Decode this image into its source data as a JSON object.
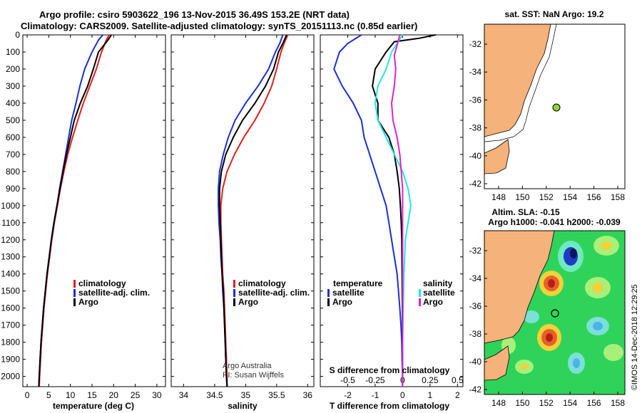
{
  "header": {
    "line1": "Argo profile: csiro 5903622_196 13-Nov-2015 36.49S 153.2E (NRT data)",
    "line2": "Climatology: CARS2009. Satellite-adjusted climatology: synTS_20151113.nc (0.85d earlier)"
  },
  "colors": {
    "climatology": "#e0201c",
    "satellite": "#1a2fd6",
    "argo": "#000000",
    "sat_salinity": "#22e6e6",
    "sal_clim": "#e020d0",
    "land": "#f5b27a"
  },
  "chart_data": [
    {
      "type": "line",
      "id": "temperature",
      "xlabel": "temperature (deg C)",
      "xlim": [
        -1,
        32
      ],
      "ylim": [
        2060,
        0
      ],
      "xticks": [
        0,
        5,
        10,
        15,
        20,
        25,
        30
      ],
      "yticks": [
        0,
        100,
        200,
        300,
        400,
        500,
        600,
        700,
        800,
        900,
        1000,
        1100,
        1200,
        1300,
        1400,
        1500,
        1600,
        1700,
        1800,
        1900,
        2000
      ],
      "legend": [
        "climatology",
        "satellite-adj. clim.",
        "Argo"
      ],
      "series": [
        {
          "name": "climatology",
          "color": "#e0201c",
          "points": [
            [
              19,
              0
            ],
            [
              18.3,
              30
            ],
            [
              17.2,
              100
            ],
            [
              16,
              200
            ],
            [
              14.5,
              300
            ],
            [
              13,
              400
            ],
            [
              11.7,
              500
            ],
            [
              10.5,
              600
            ],
            [
              9.4,
              700
            ],
            [
              8.5,
              800
            ],
            [
              7.7,
              900
            ],
            [
              7,
              1000
            ],
            [
              6.3,
              1100
            ],
            [
              5.7,
              1200
            ],
            [
              5.2,
              1300
            ],
            [
              4.7,
              1400
            ],
            [
              4.3,
              1500
            ],
            [
              3.9,
              1600
            ],
            [
              3.6,
              1700
            ],
            [
              3.3,
              1800
            ],
            [
              3.1,
              1900
            ],
            [
              2.9,
              2000
            ],
            [
              2.8,
              2060
            ]
          ]
        },
        {
          "name": "satellite-adj. clim.",
          "color": "#1a2fd6",
          "points": [
            [
              17.5,
              0
            ],
            [
              16.5,
              30
            ],
            [
              15,
              100
            ],
            [
              13.3,
              200
            ],
            [
              12.2,
              300
            ],
            [
              11.3,
              400
            ],
            [
              10.3,
              500
            ],
            [
              9.6,
              600
            ],
            [
              8.9,
              700
            ],
            [
              8.2,
              800
            ],
            [
              7.5,
              900
            ],
            [
              6.9,
              1000
            ],
            [
              6.2,
              1100
            ],
            [
              5.6,
              1200
            ],
            [
              5.1,
              1300
            ],
            [
              4.6,
              1400
            ],
            [
              4.2,
              1500
            ],
            [
              3.8,
              1600
            ],
            [
              3.5,
              1700
            ],
            [
              3.2,
              1800
            ],
            [
              3,
              1900
            ],
            [
              2.8,
              2000
            ],
            [
              2.7,
              2060
            ]
          ]
        },
        {
          "name": "Argo",
          "color": "#000000",
          "points": [
            [
              19.5,
              0
            ],
            [
              18.7,
              30
            ],
            [
              16.5,
              100
            ],
            [
              15.3,
              200
            ],
            [
              14,
              300
            ],
            [
              12.3,
              400
            ],
            [
              10.9,
              500
            ],
            [
              10,
              600
            ],
            [
              9.1,
              700
            ],
            [
              8.3,
              800
            ],
            [
              7.6,
              900
            ],
            [
              6.9,
              1000
            ],
            [
              6.2,
              1100
            ],
            [
              5.6,
              1200
            ],
            [
              5.1,
              1300
            ],
            [
              4.6,
              1400
            ],
            [
              4.2,
              1500
            ],
            [
              3.8,
              1600
            ],
            [
              3.5,
              1700
            ],
            [
              3.2,
              1800
            ],
            [
              3,
              1900
            ],
            [
              2.8,
              2000
            ],
            [
              2.7,
              2060
            ]
          ]
        }
      ]
    },
    {
      "type": "line",
      "id": "salinity",
      "xlabel": "salinity",
      "xlim": [
        33.8,
        36.1
      ],
      "ylim": [
        2060,
        0
      ],
      "xticks": [
        34,
        34.5,
        35,
        35.5,
        36
      ],
      "legend": [
        "climatology",
        "satellite-adj. clim.",
        "Argo"
      ],
      "annotation": [
        "Argo Australia",
        "PI: Susan Wijffels"
      ],
      "series": [
        {
          "name": "climatology",
          "color": "#e0201c",
          "points": [
            [
              35.68,
              0
            ],
            [
              35.62,
              50
            ],
            [
              35.57,
              100
            ],
            [
              35.5,
              200
            ],
            [
              35.42,
              300
            ],
            [
              35.3,
              400
            ],
            [
              35.15,
              500
            ],
            [
              34.97,
              600
            ],
            [
              34.82,
              700
            ],
            [
              34.7,
              800
            ],
            [
              34.63,
              900
            ],
            [
              34.6,
              1000
            ],
            [
              34.6,
              1100
            ],
            [
              34.61,
              1200
            ],
            [
              34.62,
              1300
            ],
            [
              34.63,
              1400
            ],
            [
              34.65,
              1500
            ],
            [
              34.66,
              1600
            ],
            [
              34.67,
              1700
            ],
            [
              34.68,
              1800
            ],
            [
              34.69,
              1900
            ],
            [
              34.7,
              2000
            ],
            [
              34.7,
              2060
            ]
          ]
        },
        {
          "name": "satellite-adj. clim.",
          "color": "#1a2fd6",
          "points": [
            [
              35.6,
              0
            ],
            [
              35.55,
              50
            ],
            [
              35.48,
              100
            ],
            [
              35.37,
              200
            ],
            [
              35.2,
              300
            ],
            [
              35,
              400
            ],
            [
              34.83,
              500
            ],
            [
              34.72,
              600
            ],
            [
              34.64,
              700
            ],
            [
              34.58,
              800
            ],
            [
              34.56,
              900
            ],
            [
              34.56,
              1000
            ],
            [
              34.57,
              1100
            ],
            [
              34.59,
              1200
            ],
            [
              34.6,
              1300
            ],
            [
              34.62,
              1400
            ],
            [
              34.63,
              1500
            ],
            [
              34.65,
              1600
            ],
            [
              34.66,
              1700
            ],
            [
              34.67,
              1800
            ],
            [
              34.68,
              1900
            ],
            [
              34.69,
              2000
            ],
            [
              34.7,
              2060
            ]
          ]
        },
        {
          "name": "Argo",
          "color": "#000000",
          "points": [
            [
              35.66,
              0
            ],
            [
              35.6,
              50
            ],
            [
              35.53,
              100
            ],
            [
              35.45,
              200
            ],
            [
              35.32,
              300
            ],
            [
              35.15,
              400
            ],
            [
              34.95,
              500
            ],
            [
              34.8,
              600
            ],
            [
              34.68,
              700
            ],
            [
              34.61,
              800
            ],
            [
              34.58,
              900
            ],
            [
              34.58,
              1000
            ],
            [
              34.59,
              1100
            ],
            [
              34.6,
              1200
            ],
            [
              34.61,
              1300
            ],
            [
              34.62,
              1400
            ],
            [
              34.64,
              1500
            ],
            [
              34.65,
              1600
            ],
            [
              34.66,
              1700
            ],
            [
              34.67,
              1800
            ],
            [
              34.68,
              1900
            ],
            [
              34.69,
              2000
            ],
            [
              34.7,
              2060
            ]
          ]
        }
      ]
    },
    {
      "type": "line",
      "id": "difference",
      "xlabel": "T difference from climatology",
      "top_label": "S difference from climatology",
      "xlim": [
        -3,
        2.2
      ],
      "ylim": [
        2060,
        0
      ],
      "xticks": [
        -2,
        -1,
        0,
        1,
        2
      ],
      "s_ticks": [
        "-0.5",
        "-0.25",
        "0",
        "0.25",
        "0.5"
      ],
      "s_tick_positions": [
        -2,
        -1,
        0,
        1,
        2
      ],
      "legend_left_title": "temperature",
      "legend_right_title": "salinity",
      "legend_left": [
        "satellite",
        "Argo"
      ],
      "legend_right": [
        "satellite",
        "Argo"
      ],
      "series": [
        {
          "name": "T satellite",
          "color": "#1a2fd6",
          "points": [
            [
              -1.5,
              0
            ],
            [
              -2,
              50
            ],
            [
              -2.3,
              100
            ],
            [
              -2.5,
              200
            ],
            [
              -2.2,
              300
            ],
            [
              -1.8,
              400
            ],
            [
              -1.5,
              500
            ],
            [
              -1.4,
              600
            ],
            [
              -1.2,
              700
            ],
            [
              -1,
              800
            ],
            [
              -0.8,
              900
            ],
            [
              -0.6,
              1000
            ],
            [
              -0.5,
              1100
            ],
            [
              -0.4,
              1200
            ],
            [
              -0.3,
              1300
            ],
            [
              -0.2,
              1400
            ],
            [
              -0.15,
              1500
            ],
            [
              -0.1,
              1600
            ],
            [
              -0.06,
              1700
            ],
            [
              -0.03,
              1800
            ],
            [
              -0.02,
              1900
            ],
            [
              0,
              2000
            ],
            [
              0,
              2060
            ]
          ]
        },
        {
          "name": "T Argo",
          "color": "#000000",
          "points": [
            [
              1.2,
              0
            ],
            [
              0.6,
              20
            ],
            [
              -0.3,
              40
            ],
            [
              -0.6,
              100
            ],
            [
              -1,
              200
            ],
            [
              -1.1,
              300
            ],
            [
              -0.9,
              400
            ],
            [
              -0.9,
              500
            ],
            [
              -0.5,
              600
            ],
            [
              -0.3,
              700
            ],
            [
              -0.2,
              800
            ],
            [
              -0.12,
              900
            ],
            [
              -0.08,
              1000
            ],
            [
              -0.05,
              1100
            ],
            [
              -0.03,
              1200
            ],
            [
              -0.02,
              1400
            ],
            [
              -0.01,
              1600
            ],
            [
              0,
              1800
            ],
            [
              0,
              2060
            ]
          ]
        },
        {
          "name": "S satellite",
          "color": "#22e6e6",
          "points": [
            [
              0,
              0
            ],
            [
              -0.2,
              50
            ],
            [
              -0.4,
              100
            ],
            [
              -0.6,
              200
            ],
            [
              -0.9,
              300
            ],
            [
              -1,
              400
            ],
            [
              -0.9,
              500
            ],
            [
              -0.6,
              600
            ],
            [
              -0.3,
              700
            ],
            [
              0,
              800
            ],
            [
              0.2,
              900
            ],
            [
              0.3,
              1000
            ],
            [
              0.2,
              1100
            ],
            [
              0.1,
              1200
            ],
            [
              0.05,
              1400
            ],
            [
              0.02,
              1600
            ],
            [
              0,
              1800
            ],
            [
              0,
              2060
            ]
          ]
        },
        {
          "name": "S Argo",
          "color": "#e020d0",
          "points": [
            [
              -0.1,
              0
            ],
            [
              -0.2,
              60
            ],
            [
              -0.3,
              120
            ],
            [
              -0.25,
              200
            ],
            [
              -0.3,
              300
            ],
            [
              -0.4,
              400
            ],
            [
              -0.35,
              500
            ],
            [
              -0.2,
              600
            ],
            [
              -0.1,
              700
            ],
            [
              -0.05,
              800
            ],
            [
              0,
              900
            ],
            [
              0,
              1000
            ],
            [
              0,
              1100
            ],
            [
              0,
              1200
            ],
            [
              0,
              1400
            ],
            [
              0,
              1600
            ],
            [
              0,
              1800
            ],
            [
              0,
              2060
            ]
          ]
        }
      ]
    }
  ],
  "sst_map": {
    "title": "sat. SST: NaN Argo: 19.2",
    "xticks": [
      "148",
      "150",
      "152",
      "154",
      "156",
      "158"
    ],
    "yticks": [
      "-32",
      "-34",
      "-36",
      "-38",
      "-40",
      "-42"
    ],
    "float_lon": 153.2,
    "float_lat": -36.49
  },
  "sla_map": {
    "title1": "Altim. SLA: -0.15",
    "title2": "Argo h1000: -0.041 h2000: -0.039",
    "xticks": [
      "148",
      "150",
      "152",
      "154",
      "156",
      "158"
    ],
    "yticks": [
      "-32",
      "-34",
      "-36",
      "-38",
      "-40",
      "-42"
    ],
    "credit": "©IMOS 14-Dec-2018 12:29:25"
  }
}
